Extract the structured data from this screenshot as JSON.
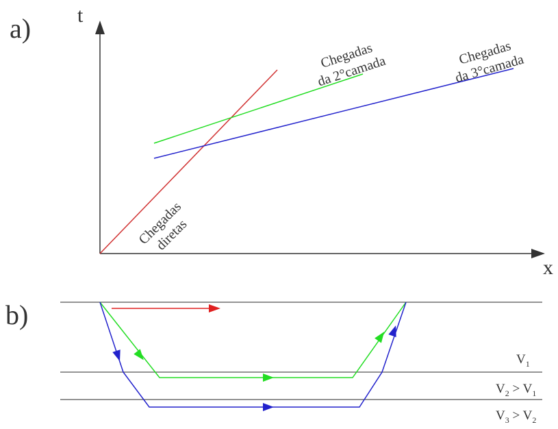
{
  "panel_a": {
    "label": "a)",
    "axis_y_label": "t",
    "axis_x_label": "x",
    "lines": {
      "direct": {
        "label_line1": "Chegadas",
        "label_line2": "diretas",
        "color": "#d03030"
      },
      "layer2": {
        "label_line1": "Chegadas",
        "label_line2": "da 2°camada",
        "color": "#22dd22"
      },
      "layer3": {
        "label_line1": "Chegadas",
        "label_line2": "da 3°camada",
        "color": "#2222cc"
      }
    }
  },
  "panel_b": {
    "label": "b)",
    "layers": {
      "v1": {
        "base": "V",
        "sub": "1",
        "rel": ""
      },
      "v2": {
        "base": "V",
        "sub": "2",
        "rel": " > V",
        "rel_sub": "1"
      },
      "v3": {
        "base": "V",
        "sub": "3",
        "rel": " > V",
        "rel_sub": "2"
      }
    },
    "colors": {
      "direct": "#e02020",
      "refracted2": "#22dd22",
      "refracted3": "#2222cc",
      "interface": "#555555"
    }
  }
}
